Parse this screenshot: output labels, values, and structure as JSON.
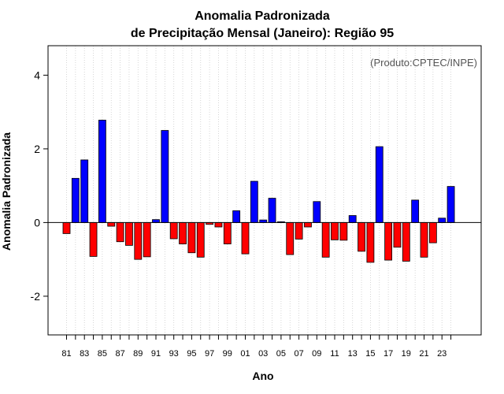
{
  "chart_data": {
    "type": "bar",
    "title": "Anomalia Padronizada",
    "subtitle": "de Precipitação Mensal (Janeiro): Região 95",
    "xlabel": "Ano",
    "ylabel": "Anomalia Padronizada",
    "credit": "(Produto:CPTEC/INPE)",
    "ylim": [
      -3.05,
      4.8
    ],
    "yticks": [
      -2,
      0,
      2,
      4
    ],
    "grid": "vertical-dotted",
    "positive_color": "#0000ff",
    "negative_color": "#ff0000",
    "categories": [
      "81",
      "82",
      "83",
      "84",
      "85",
      "86",
      "87",
      "88",
      "89",
      "90",
      "91",
      "92",
      "93",
      "94",
      "95",
      "96",
      "97",
      "98",
      "99",
      "00",
      "01",
      "02",
      "03",
      "04",
      "05",
      "06",
      "07",
      "08",
      "09",
      "10",
      "11",
      "12",
      "13",
      "14",
      "15",
      "16",
      "17",
      "18",
      "19",
      "20",
      "21",
      "22",
      "23",
      "24"
    ],
    "xtick_labels": [
      "81",
      "83",
      "85",
      "87",
      "89",
      "91",
      "93",
      "95",
      "97",
      "99",
      "01",
      "03",
      "05",
      "07",
      "09",
      "11",
      "13",
      "15",
      "17",
      "19",
      "21",
      "23"
    ],
    "values": [
      -0.3,
      1.2,
      1.7,
      -0.92,
      2.78,
      -0.1,
      -0.52,
      -0.62,
      -1.0,
      -0.93,
      0.08,
      2.5,
      -0.44,
      -0.58,
      -0.82,
      -0.94,
      -0.05,
      -0.12,
      -0.58,
      0.32,
      -0.85,
      1.12,
      0.07,
      0.66,
      0.02,
      -0.87,
      -0.45,
      -0.12,
      0.57,
      -0.94,
      -0.47,
      -0.48,
      0.19,
      -0.78,
      -1.08,
      2.06,
      -1.02,
      -0.67,
      -1.05,
      0.61,
      -0.94,
      -0.55,
      0.12,
      0.98
    ]
  }
}
